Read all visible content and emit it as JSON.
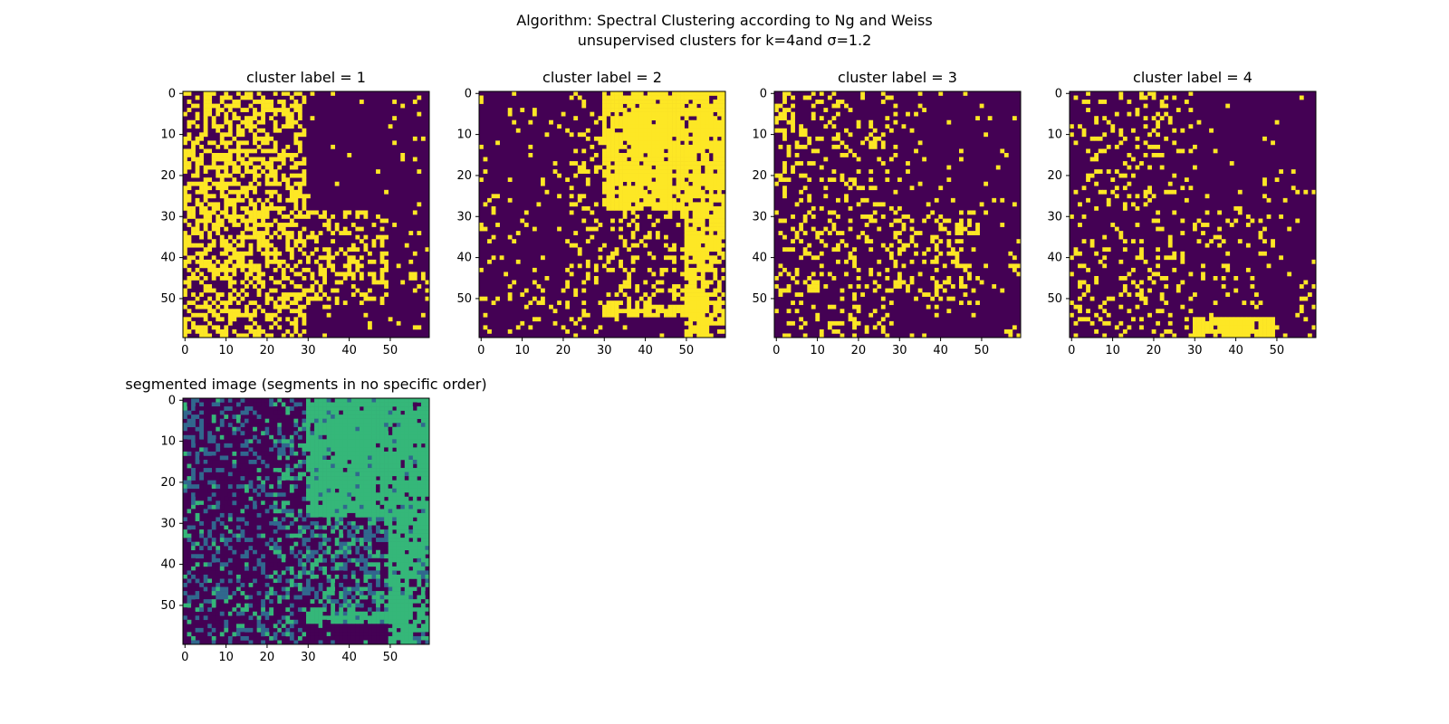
{
  "figure": {
    "title_line1": "Algorithm: Spectral Clustering according to Ng and Weiss",
    "title_line2": "unsupervised clusters for k=4and σ=1.2"
  },
  "colors": {
    "background": "#440154",
    "foreground": "#fde725",
    "segment_colors": [
      "#440154",
      "#31688e",
      "#35b779",
      "#fde725"
    ],
    "axis": "#000000"
  },
  "chart_data": [
    {
      "type": "heatmap",
      "title": "cluster label = 1",
      "grid_size": [
        60,
        60
      ],
      "xticks": [
        0,
        10,
        20,
        30,
        40,
        50
      ],
      "yticks": [
        0,
        10,
        20,
        30,
        40,
        50
      ],
      "values": "binary mask (1 = pixel assigned to cluster 1); dense speckle over left third of image and lower-middle region",
      "xlabel": "",
      "ylabel": ""
    },
    {
      "type": "heatmap",
      "title": "cluster label = 2",
      "grid_size": [
        60,
        60
      ],
      "xticks": [
        0,
        10,
        20,
        30,
        40,
        50
      ],
      "yticks": [
        0,
        10,
        20,
        30,
        40,
        50
      ],
      "values": "binary mask (1 = pixel assigned to cluster 2); solid region in upper-right and right band",
      "xlabel": "",
      "ylabel": ""
    },
    {
      "type": "heatmap",
      "title": "cluster label = 3",
      "grid_size": [
        60,
        60
      ],
      "xticks": [
        0,
        10,
        20,
        30,
        40,
        50
      ],
      "yticks": [
        0,
        10,
        20,
        30,
        40,
        50
      ],
      "values": "binary mask (1 = pixel assigned to cluster 3); sparse speckle on left, cluster near rows 30-50, cols 30-50",
      "xlabel": "",
      "ylabel": ""
    },
    {
      "type": "heatmap",
      "title": "cluster label = 4",
      "grid_size": [
        60,
        60
      ],
      "xticks": [
        0,
        10,
        20,
        30,
        40,
        50
      ],
      "yticks": [
        0,
        10,
        20,
        30,
        40,
        50
      ],
      "values": "binary mask (1 = pixel assigned to cluster 4); sparse speckle, solid band rows 55-59 cols 22-49",
      "xlabel": "",
      "ylabel": ""
    },
    {
      "type": "heatmap",
      "title": "segmented image (segments in no specific order)",
      "grid_size": [
        60,
        60
      ],
      "xticks": [
        0,
        10,
        20,
        30,
        40,
        50
      ],
      "yticks": [
        0,
        10,
        20,
        30,
        40,
        50
      ],
      "values": "4-level label map combining clusters 1-4",
      "xlabel": "",
      "ylabel": ""
    }
  ]
}
